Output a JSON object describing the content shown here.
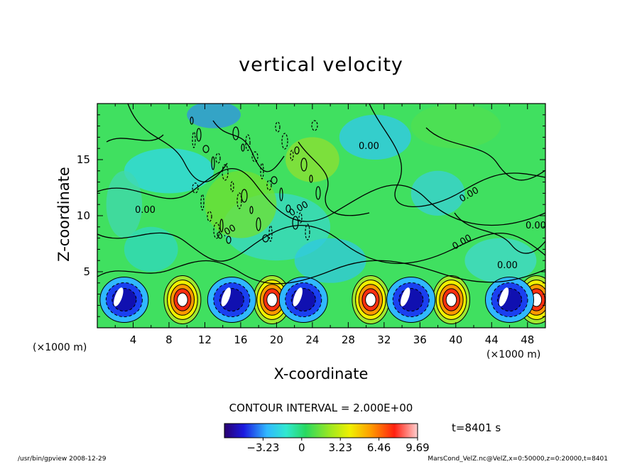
{
  "chart_data": {
    "type": "heatmap",
    "title": "vertical velocity",
    "xlabel": "X-coordinate",
    "ylabel": "Z-coordinate",
    "x_unit": "(×1000 m)",
    "y_unit": "(×1000 m)",
    "xlim": [
      0,
      50
    ],
    "ylim": [
      0,
      20
    ],
    "x_ticks": [
      "4",
      "8",
      "12",
      "16",
      "20",
      "24",
      "28",
      "32",
      "36",
      "40",
      "44",
      "48"
    ],
    "y_ticks": [
      "5",
      "10",
      "15"
    ],
    "contour_labels": [
      "0.00",
      "0.00",
      "0.00",
      "0.00",
      "0.00",
      "0.00",
      "0.00",
      "0.00"
    ],
    "colorbar": {
      "ticks": [
        "−3.23",
        "0",
        "3.23",
        "6.46",
        "9.69"
      ],
      "min": -6.46,
      "max": 9.69
    },
    "updraft_centers_x": [
      9.5,
      19.5,
      30.5,
      39.5,
      49.0
    ],
    "downdraft_centers_x": [
      3.0,
      15.0,
      23.0,
      35.0,
      46.0
    ],
    "contour_interval": "CONTOUR INTERVAL = 2.000E+00",
    "time": "t=8401 s"
  },
  "footer": {
    "left": "/usr/bin/gpview   2008-12-29",
    "right": "MarsCond_VelZ.nc@VelZ,x=0:50000,z=0:20000,t=8401"
  }
}
